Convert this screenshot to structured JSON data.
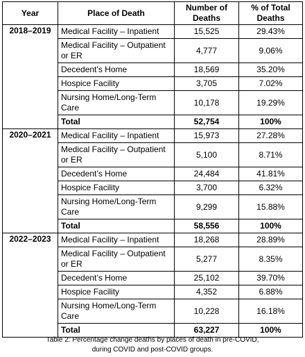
{
  "table": {
    "headers": {
      "year": "Year",
      "place": "Place of Death",
      "number_line1": "Number of",
      "number_line2": "Deaths",
      "pct_line1": "% of Total",
      "pct_line2": "Deaths"
    },
    "groups": [
      {
        "year": "2018–2019",
        "rows": [
          {
            "place": "Medical Facility – Inpatient",
            "number": "15,525",
            "percent": "29.43%"
          },
          {
            "place": "Medical Facility – Outpatient or ER",
            "number": "4,777",
            "percent": "9.06%"
          },
          {
            "place": "Decedent’s Home",
            "number": "18,569",
            "percent": "35.20%"
          },
          {
            "place": "Hospice Facility",
            "number": "3,705",
            "percent": "7.02%"
          },
          {
            "place": "Nursing Home/Long-Term Care",
            "number": "10,178",
            "percent": "19.29%"
          }
        ],
        "total": {
          "label": "Total",
          "number": "52,754",
          "percent": "100%"
        }
      },
      {
        "year": "2020–2021",
        "rows": [
          {
            "place": "Medical Facility – Inpatient",
            "number": "15,973",
            "percent": "27.28%"
          },
          {
            "place": "Medical Facility – Outpatient or ER",
            "number": "5,100",
            "percent": "8.71%"
          },
          {
            "place": "Decedent’s Home",
            "number": "24,484",
            "percent": "41.81%"
          },
          {
            "place": "Hospice Facility",
            "number": "3,700",
            "percent": "6.32%"
          },
          {
            "place": "Nursing Home/Long-Term Care",
            "number": "9,299",
            "percent": "15.88%"
          }
        ],
        "total": {
          "label": "Total",
          "number": "58,556",
          "percent": "100%"
        }
      },
      {
        "year": "2022–2023",
        "rows": [
          {
            "place": "Medical Facility – Inpatient",
            "number": "18,268",
            "percent": "28.89%"
          },
          {
            "place": "Medical Facility – Outpatient or ER",
            "number": "5,277",
            "percent": "8.35%"
          },
          {
            "place": "Decedent’s Home",
            "number": "25,102",
            "percent": "39.70%"
          },
          {
            "place": "Hospice Facility",
            "number": "4,352",
            "percent": "6.88%"
          },
          {
            "place": "Nursing Home/Long-Term Care",
            "number": "10,228",
            "percent": "16.18%"
          }
        ],
        "total": {
          "label": "Total",
          "number": "63,227",
          "percent": "100%"
        }
      }
    ]
  },
  "caption": {
    "line1": "Table 2: Percentage change deaths by places of death in pre-COVID,",
    "line2": "during COVID and post-COVID groups."
  }
}
